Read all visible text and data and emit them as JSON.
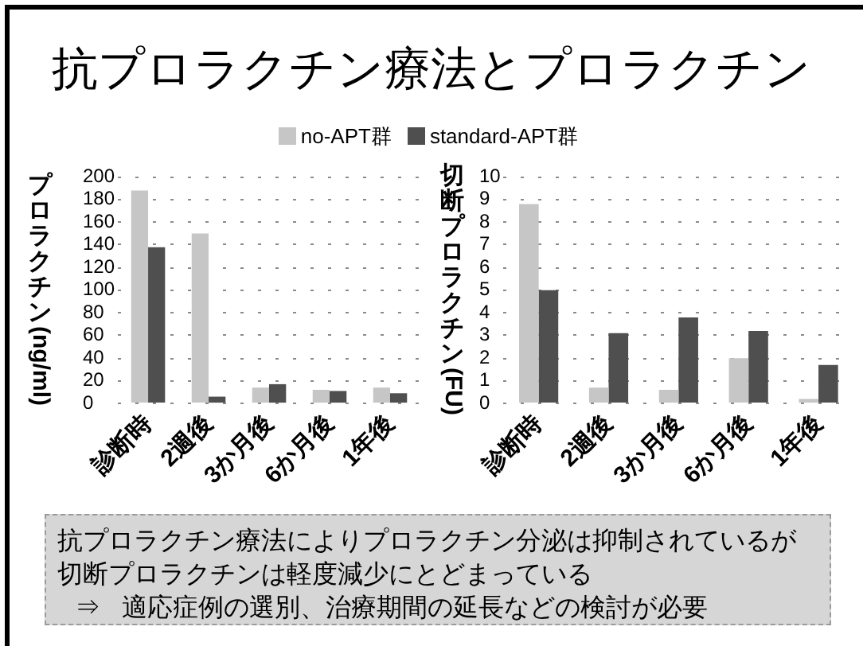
{
  "chart_data": [
    {
      "type": "bar",
      "title": "抗プロラクチン療法とプロラクチン",
      "ylabel": "プロラクチン(ng/ml)",
      "categories": [
        "診断時",
        "2週後",
        "3か月後",
        "6か月後",
        "1年後"
      ],
      "series": [
        {
          "name": "no-APT群",
          "color": "#c6c6c6",
          "values": [
            188,
            150,
            14,
            12,
            14
          ]
        },
        {
          "name": "standard-APT群",
          "color": "#4f4f4f",
          "values": [
            138,
            6,
            17,
            11,
            9
          ]
        }
      ],
      "ylim": [
        0,
        200
      ],
      "yticks": [
        0,
        20,
        40,
        60,
        80,
        100,
        120,
        140,
        160,
        180,
        200
      ],
      "grid": "y",
      "legend": "top",
      "annotations": [
        "抗プロラクチン療法によりプロラクチン分泌は抑制されているが",
        "切断プロラクチンは軽度減少にとどまっている",
        "⇒ 適応症例の選別、治療期間の延長などの検討が必要"
      ]
    },
    {
      "type": "bar",
      "ylabel": "切断プロラクチン(FU)",
      "categories": [
        "診断時",
        "2週後",
        "3か月後",
        "6か月後",
        "1年後"
      ],
      "series": [
        {
          "color": "#c6c6c6",
          "values": [
            8.8,
            0.7,
            0.6,
            2.0,
            0.2
          ]
        },
        {
          "color": "#4f4f4f",
          "values": [
            5,
            3.1,
            3.8,
            3.2,
            1.7
          ]
        }
      ],
      "ylim": [
        0,
        10
      ],
      "yticks": [
        0,
        1,
        2,
        3,
        4,
        5,
        6,
        7,
        8,
        9,
        10
      ],
      "grid": "y"
    }
  ]
}
